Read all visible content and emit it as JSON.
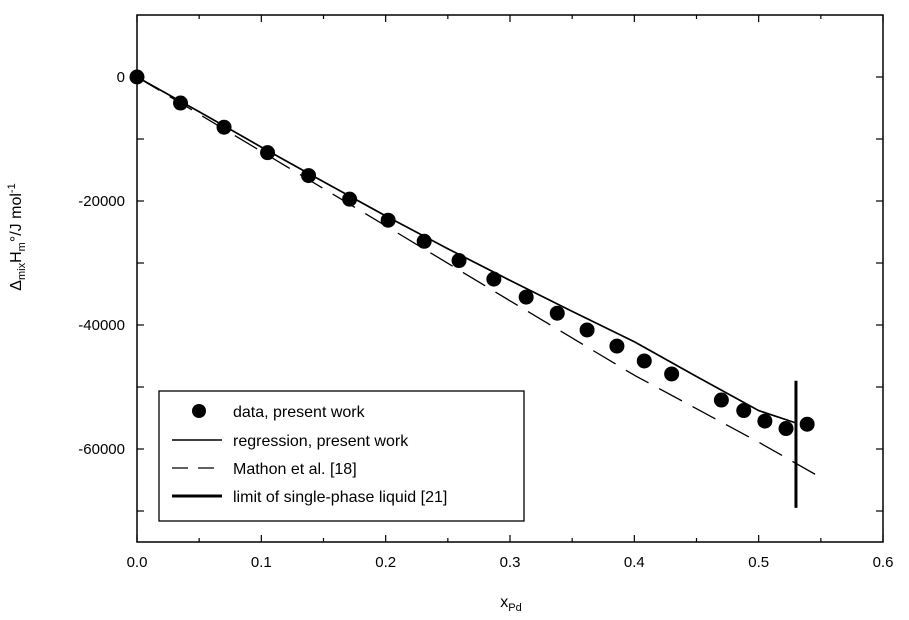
{
  "chart_data": {
    "type": "scatter",
    "xlabel": {
      "main": "x",
      "sub": "Pd"
    },
    "ylabel": {
      "delta": "Δ",
      "delta_sub": "mix",
      "main": "H",
      "main_sub": "m",
      "rest": "°/J mol",
      "sup": "-1"
    },
    "xlim": [
      0.0,
      0.6
    ],
    "ylim": [
      -75000,
      10000
    ],
    "xticks": [
      0.0,
      0.1,
      0.2,
      0.3,
      0.4,
      0.5,
      0.6
    ],
    "xtick_labels": [
      "0.0",
      "0.1",
      "0.2",
      "0.3",
      "0.4",
      "0.5",
      "0.6"
    ],
    "yticks": [
      0,
      -20000,
      -40000,
      -60000
    ],
    "ytick_labels": [
      "0",
      "-20000",
      "-40000",
      "-60000"
    ],
    "grid": false,
    "legend_position": "bottom-left",
    "series": [
      {
        "name": "data, present work",
        "kind": "points",
        "x": [
          0.0,
          0.035,
          0.07,
          0.105,
          0.138,
          0.171,
          0.202,
          0.231,
          0.259,
          0.287,
          0.313,
          0.338,
          0.362,
          0.386,
          0.408,
          0.43,
          0.47,
          0.488,
          0.505,
          0.522,
          0.539
        ],
        "y": [
          0,
          -4200,
          -8100,
          -12200,
          -15900,
          -19700,
          -23100,
          -26500,
          -29600,
          -32600,
          -35500,
          -38100,
          -40800,
          -43400,
          -45800,
          -47900,
          -52100,
          -53800,
          -55500,
          -56700,
          -56000
        ]
      },
      {
        "name": "regression, present work",
        "kind": "line-solid",
        "x": [
          0.0,
          0.05,
          0.1,
          0.15,
          0.2,
          0.25,
          0.3,
          0.35,
          0.4,
          0.45,
          0.5,
          0.53
        ],
        "y": [
          0,
          -5600,
          -11300,
          -16900,
          -22400,
          -27700,
          -32800,
          -37800,
          -42700,
          -48300,
          -53800,
          -55800
        ]
      },
      {
        "name": "Mathon et al. [18]",
        "kind": "line-dashed",
        "x": [
          0.0,
          0.1,
          0.2,
          0.3,
          0.4,
          0.5,
          0.55
        ],
        "y": [
          0,
          -12000,
          -24000,
          -36100,
          -48100,
          -58900,
          -64600
        ]
      },
      {
        "name": "limit of single-phase liquid [21]",
        "kind": "vline",
        "x": 0.53,
        "y_range": [
          -69500,
          -49000
        ]
      }
    ]
  }
}
